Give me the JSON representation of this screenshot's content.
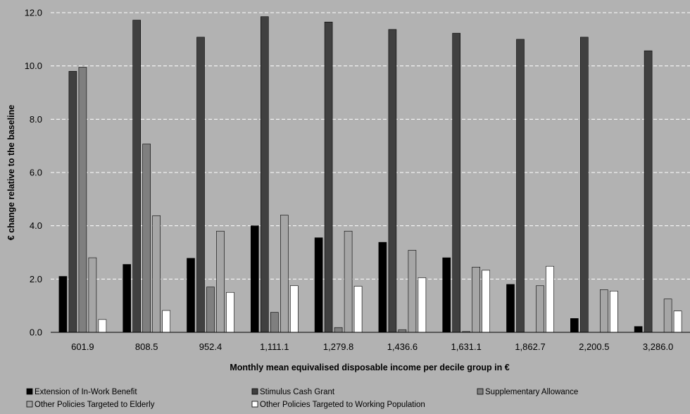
{
  "chart_data": {
    "type": "bar",
    "title": "",
    "xlabel": "Monthly mean equivalised disposable income per decile group in  €",
    "ylabel": "€ change relative  to the  baseline",
    "ylim": [
      0,
      12
    ],
    "yticks": [
      "0.0",
      "2.0",
      "4.0",
      "6.0",
      "8.0",
      "10.0",
      "12.0"
    ],
    "grid": true,
    "legend_position": "bottom",
    "categories": [
      "601.9",
      "808.5",
      "952.4",
      "1,111.1",
      "1,279.8",
      "1,436.6",
      "1,631.1",
      "1,862.7",
      "2,200.5",
      "3,286.0"
    ],
    "series": [
      {
        "name": "Extension of In-Work Benefit",
        "color": "#000000",
        "values": [
          2.1,
          2.55,
          2.78,
          4.0,
          3.55,
          3.38,
          2.8,
          1.8,
          0.52,
          0.22
        ]
      },
      {
        "name": "Stimulus Cash Grant",
        "color": "#404040",
        "values": [
          9.8,
          11.72,
          11.08,
          11.85,
          11.65,
          11.37,
          11.23,
          11.0,
          11.08,
          10.57
        ]
      },
      {
        "name": "Supplementary Allowance",
        "color": "#7f7f7f",
        "values": [
          9.95,
          7.07,
          1.7,
          0.75,
          0.18,
          0.1,
          0.03,
          0.0,
          0.0,
          0.0
        ]
      },
      {
        "name": "Other Policies Targeted to Elderly",
        "color": "#a6a6a6",
        "values": [
          2.8,
          4.38,
          3.8,
          4.4,
          3.8,
          3.08,
          2.45,
          1.75,
          1.6,
          1.25
        ]
      },
      {
        "name": "Other Policies Targeted to Working Population",
        "color": "#ffffff",
        "values": [
          0.48,
          0.82,
          1.5,
          1.75,
          1.73,
          2.05,
          2.33,
          2.48,
          1.55,
          0.8
        ]
      }
    ]
  }
}
